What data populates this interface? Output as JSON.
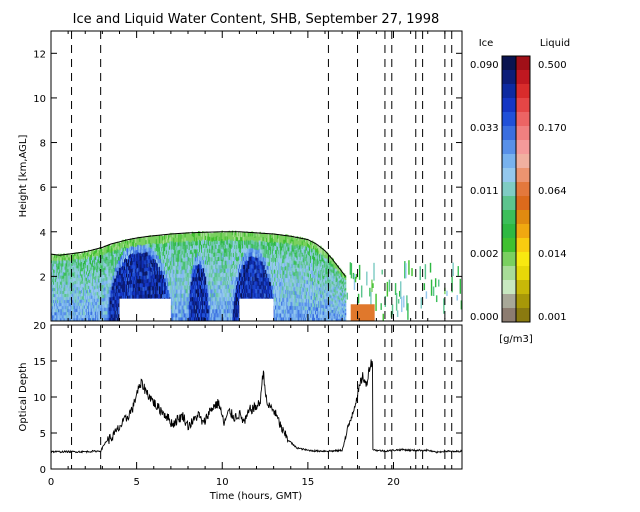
{
  "chart_data": [
    {
      "type": "heatmap",
      "title": "Ice and Liquid Water Content, SHB, September 27, 1998",
      "ylabel": "Height [km,AGL]",
      "xlim": [
        0,
        24
      ],
      "ylim": [
        0,
        13
      ],
      "xticks": [
        0,
        5,
        10,
        15,
        20
      ],
      "xtick_labels": [
        "0",
        "5",
        "10",
        "15",
        "20"
      ],
      "yticks": [
        2,
        4,
        6,
        8,
        10,
        12
      ],
      "ytick_labels": [
        "2",
        "4",
        "6",
        "8",
        "10",
        "12"
      ],
      "vertical_dashed_lines": [
        1.2,
        2.9,
        16.2,
        17.9,
        19.5,
        19.9,
        21.3,
        21.7,
        23.0,
        23.4
      ],
      "cloud_top": [
        [
          0.0,
          3.0
        ],
        [
          0.5,
          2.95
        ],
        [
          1.0,
          3.0
        ],
        [
          1.5,
          3.05
        ],
        [
          2.0,
          3.1
        ],
        [
          2.5,
          3.2
        ],
        [
          3.0,
          3.3
        ],
        [
          3.5,
          3.45
        ],
        [
          4.0,
          3.55
        ],
        [
          4.5,
          3.65
        ],
        [
          5.0,
          3.72
        ],
        [
          5.5,
          3.78
        ],
        [
          6.0,
          3.82
        ],
        [
          7.0,
          3.9
        ],
        [
          8.0,
          3.95
        ],
        [
          9.0,
          3.98
        ],
        [
          10.0,
          4.0
        ],
        [
          11.0,
          4.0
        ],
        [
          12.0,
          3.95
        ],
        [
          13.0,
          3.9
        ],
        [
          14.0,
          3.8
        ],
        [
          15.0,
          3.65
        ],
        [
          15.5,
          3.45
        ],
        [
          16.0,
          3.15
        ],
        [
          16.4,
          2.8
        ],
        [
          16.8,
          2.4
        ],
        [
          17.2,
          2.0
        ]
      ],
      "ice_cores": [
        {
          "x": [
            3.3,
            7.0
          ],
          "top": 3.1
        },
        {
          "x": [
            8.0,
            9.2
          ],
          "top": 2.6
        },
        {
          "x": [
            10.6,
            13.0
          ],
          "top": 2.9
        }
      ],
      "liquid_patch": {
        "x": [
          17.5,
          18.9
        ],
        "top": 0.75
      },
      "missing_blocks": [
        {
          "x": [
            4.0,
            7.0
          ],
          "y": [
            0,
            1.0
          ]
        },
        {
          "x": [
            11.0,
            13.0
          ],
          "y": [
            0,
            1.0
          ]
        }
      ],
      "colorbar": {
        "ice_label": "Ice",
        "liquid_label": "Liquid",
        "units": "[g/m3]",
        "ice_ticks": [
          "0.090",
          "0.033",
          "0.011",
          "0.002",
          "0.000"
        ],
        "liquid_ticks": [
          "0.500",
          "0.170",
          "0.064",
          "0.014",
          "0.001"
        ],
        "ice_colors": [
          "#0a1450",
          "#0c1d78",
          "#0d2aa0",
          "#1436c4",
          "#2050d8",
          "#3a6ee0",
          "#5890e8",
          "#78b2ee",
          "#94c8ee",
          "#7fccc4",
          "#5cc48e",
          "#3cbf5a",
          "#2eb842",
          "#40c030",
          "#7ad060",
          "#a8dc98",
          "#c8e8c0",
          "#a8a898",
          "#8c7c70"
        ],
        "liquid_colors": [
          "#a01018",
          "#c01820",
          "#d82c2c",
          "#e44646",
          "#ec6464",
          "#f08080",
          "#f49a9a",
          "#f0b0a0",
          "#ec9470",
          "#e4783c",
          "#dc6a1c",
          "#e08a10",
          "#f0a810",
          "#f8cc10",
          "#f8e810",
          "#e8d808",
          "#c8b808",
          "#a89808",
          "#8a7a10"
        ]
      }
    },
    {
      "type": "line",
      "xlabel": "Time (hours, GMT)",
      "ylabel": "Optical Depth",
      "xlim": [
        0,
        24
      ],
      "ylim": [
        0,
        20
      ],
      "xticks": [
        0,
        5,
        10,
        15,
        20
      ],
      "xtick_labels": [
        "0",
        "5",
        "10",
        "15",
        "20"
      ],
      "yticks": [
        0,
        5,
        10,
        15,
        20
      ],
      "ytick_labels": [
        "0",
        "5",
        "10",
        "15",
        "20"
      ],
      "vertical_dashed_lines": [
        1.2,
        2.9,
        16.2,
        17.9,
        19.5,
        19.9,
        21.3,
        21.7,
        23.0,
        23.4
      ],
      "series": [
        {
          "x": [
            0,
            1,
            2,
            2.9,
            3.2,
            3.6,
            4.0,
            4.4,
            4.8,
            5.0,
            5.3,
            5.6,
            5.9,
            6.2,
            6.5,
            6.8,
            7.1,
            7.4,
            7.7,
            8.0,
            8.3,
            8.6,
            8.9,
            9.2,
            9.5,
            9.8,
            10.1,
            10.4,
            10.7,
            11.0,
            11.3,
            11.6,
            11.9,
            12.2,
            12.4,
            12.6,
            12.8,
            13.0,
            13.3,
            13.6,
            14.0,
            14.3,
            14.6,
            15.0,
            15.5,
            16.0,
            16.5,
            17.0,
            17.3,
            17.6,
            17.9,
            18.2,
            18.4,
            18.6,
            18.75,
            18.8,
            19.0,
            19.5,
            20.0,
            20.5,
            21.0,
            21.5,
            22.0,
            22.5,
            23.0,
            23.5,
            24.0
          ],
          "y": [
            2.4,
            2.4,
            2.4,
            2.5,
            3.8,
            4.5,
            5.8,
            7.0,
            8.6,
            10.5,
            11.9,
            10.6,
            9.6,
            8.6,
            8.0,
            7.2,
            6.2,
            6.9,
            7.4,
            6.0,
            6.6,
            7.6,
            6.2,
            7.8,
            8.7,
            9.2,
            6.3,
            8.0,
            7.2,
            7.6,
            6.4,
            8.2,
            8.5,
            9.1,
            13.7,
            9.0,
            8.6,
            8.2,
            6.6,
            4.9,
            3.7,
            3.0,
            2.8,
            2.6,
            2.5,
            2.5,
            2.5,
            2.6,
            5.2,
            7.8,
            10.3,
            13.0,
            11.5,
            14.2,
            15.0,
            2.7,
            2.6,
            2.5,
            2.6,
            2.7,
            2.6,
            2.6,
            2.6,
            2.3,
            2.5,
            2.4,
            2.5
          ]
        }
      ]
    }
  ]
}
